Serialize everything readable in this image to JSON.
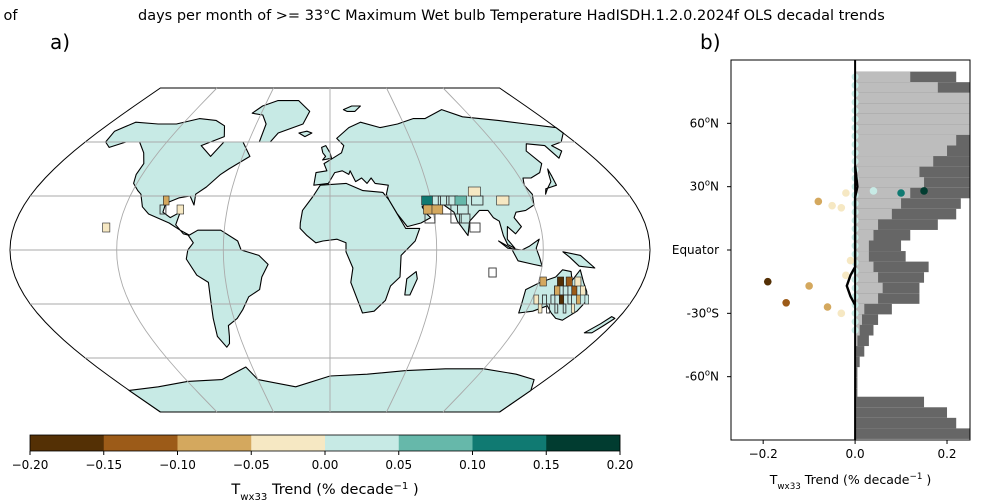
{
  "title": {
    "left_fragment": "e of",
    "main": "days per month of >= 33°C Maximum Wet bulb Temperature HadISDH.1.2.0.2024f OLS decadal trends"
  },
  "panel_labels": {
    "a": "a)",
    "b": "b)"
  },
  "colors": {
    "bins": [
      "#543005",
      "#9c5b18",
      "#d4a85e",
      "#f6e8c3",
      "#c7eae5",
      "#66b8aa",
      "#107a72",
      "#013c30"
    ],
    "land": "#c7eae5",
    "zonal_light": "#bdbdbd",
    "zonal_dark": "#666666"
  },
  "chart_data": [
    {
      "type": "heatmap",
      "subtype": "map",
      "projection": "Robinson",
      "colorbar": {
        "label": "T<sub>wx33</sub> Trend (% decade<sup>−1</sup> )",
        "ticks": [
          "−0.20",
          "−0.15",
          "−0.10",
          "−0.05",
          "0.00",
          "0.05",
          "0.10",
          "0.15",
          "0.20"
        ],
        "range": [
          -0.2,
          0.2
        ],
        "bin_edges": [
          -0.2,
          -0.15,
          -0.1,
          -0.05,
          0,
          0.05,
          0.1,
          0.15,
          0.2
        ]
      },
      "grid_on": true
    },
    {
      "type": "scatter",
      "subtype": "zonal profile",
      "xlabel": "T<sub>wx33</sub> Trend (% decade<sup>−1</sup> )",
      "xlim": [
        -0.27,
        0.25
      ],
      "ylim": [
        -90,
        90
      ],
      "xticks": [
        "−0.2",
        "0.0",
        "0.2"
      ],
      "yticks": [
        {
          "lat": 60,
          "label": "60<sup>o</sup>N"
        },
        {
          "lat": 30,
          "label": "30<sup>o</sup>N"
        },
        {
          "lat": 0,
          "label": "Equator"
        },
        {
          "lat": -30,
          "label": "-30<sup>o</sup>S"
        },
        {
          "lat": -60,
          "label": "-60<sup>o</sup>N"
        }
      ],
      "points": [
        {
          "lat": 28,
          "value": 0.15
        },
        {
          "lat": 27,
          "value": 0.1
        },
        {
          "lat": 23,
          "value": -0.08
        },
        {
          "lat": 21,
          "value": -0.05
        },
        {
          "lat": 20,
          "value": -0.03
        },
        {
          "lat": 27,
          "value": -0.02
        },
        {
          "lat": 28,
          "value": 0.04
        },
        {
          "lat": -15,
          "value": -0.19
        },
        {
          "lat": -17,
          "value": -0.1
        },
        {
          "lat": -25,
          "value": -0.15
        },
        {
          "lat": -27,
          "value": -0.06
        },
        {
          "lat": -30,
          "value": -0.03
        },
        {
          "lat": -5,
          "value": -0.01
        },
        {
          "lat": -12,
          "value": -0.02
        }
      ],
      "zonal_mean": [
        {
          "lat": 40,
          "value": 0.0
        },
        {
          "lat": 30,
          "value": 0.005
        },
        {
          "lat": 25,
          "value": 0.0
        },
        {
          "lat": 0,
          "value": 0.0
        },
        {
          "lat": -8,
          "value": 0.0
        },
        {
          "lat": -12,
          "value": -0.01
        },
        {
          "lat": -17,
          "value": -0.018
        },
        {
          "lat": -22,
          "value": -0.01
        },
        {
          "lat": -26,
          "value": 0.0
        }
      ],
      "coverage_bars": [
        {
          "lat": 82,
          "land": 0.12,
          "grid": 0.22
        },
        {
          "lat": 77,
          "land": 0.18,
          "grid": 0.28
        },
        {
          "lat": 72,
          "land": 0.26,
          "grid": 0.41
        },
        {
          "lat": 67,
          "land": 0.3,
          "grid": 0.45
        },
        {
          "lat": 62,
          "land": 0.3,
          "grid": 0.45
        },
        {
          "lat": 57,
          "land": 0.26,
          "grid": 0.44
        },
        {
          "lat": 52,
          "land": 0.22,
          "grid": 0.38
        },
        {
          "lat": 47,
          "land": 0.2,
          "grid": 0.35
        },
        {
          "lat": 42,
          "land": 0.17,
          "grid": 0.34
        },
        {
          "lat": 37,
          "land": 0.14,
          "grid": 0.31
        },
        {
          "lat": 32,
          "land": 0.15,
          "grid": 0.28
        },
        {
          "lat": 27,
          "land": 0.12,
          "grid": 0.25
        },
        {
          "lat": 22,
          "land": 0.1,
          "grid": 0.23
        },
        {
          "lat": 17,
          "land": 0.08,
          "grid": 0.22
        },
        {
          "lat": 12,
          "land": 0.05,
          "grid": 0.18
        },
        {
          "lat": 7,
          "land": 0.04,
          "grid": 0.12
        },
        {
          "lat": 2,
          "land": 0.03,
          "grid": 0.1
        },
        {
          "lat": -3,
          "land": 0.03,
          "grid": 0.11
        },
        {
          "lat": -8,
          "land": 0.04,
          "grid": 0.16
        },
        {
          "lat": -13,
          "land": 0.05,
          "grid": 0.15
        },
        {
          "lat": -18,
          "land": 0.06,
          "grid": 0.14
        },
        {
          "lat": -23,
          "land": 0.05,
          "grid": 0.14
        },
        {
          "lat": -28,
          "land": 0.02,
          "grid": 0.08
        },
        {
          "lat": -33,
          "land": 0.015,
          "grid": 0.05
        },
        {
          "lat": -38,
          "land": 0.01,
          "grid": 0.04
        },
        {
          "lat": -43,
          "land": 0.005,
          "grid": 0.03
        },
        {
          "lat": -48,
          "land": 0.002,
          "grid": 0.02
        },
        {
          "lat": -53,
          "land": 0.001,
          "grid": 0.01
        },
        {
          "lat": -58,
          "land": 0.0,
          "grid": 0.005
        },
        {
          "lat": -63,
          "land": 0.0,
          "grid": 0.005
        },
        {
          "lat": -68,
          "land": 0.0,
          "grid": 0.005
        },
        {
          "lat": -72,
          "land": 0.0,
          "grid": 0.15
        },
        {
          "lat": -77,
          "land": 0.0,
          "grid": 0.2
        },
        {
          "lat": -82,
          "land": 0.0,
          "grid": 0.22
        },
        {
          "lat": -87,
          "land": 0.0,
          "grid": 0.25
        }
      ]
    }
  ]
}
